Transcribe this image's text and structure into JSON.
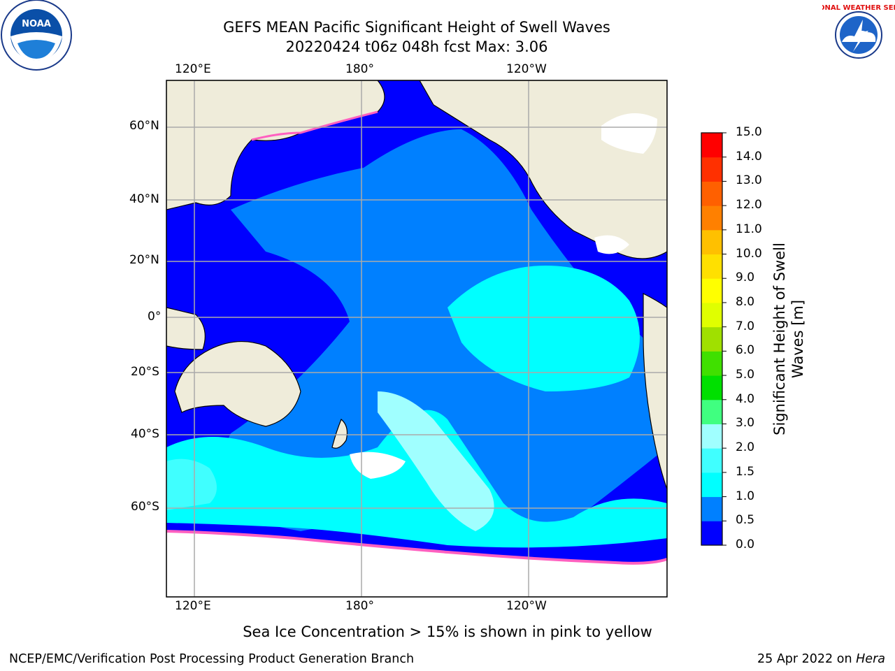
{
  "title": {
    "line1": "GEFS MEAN Pacific Significant Height of Swell Waves",
    "line2": "20220424 t06z 048h fcst   Max: 3.06"
  },
  "logos": {
    "left": {
      "name": "noaa-logo",
      "text": "NOAA"
    },
    "right": {
      "name": "nws-logo",
      "text": "NATIONAL WEATHER SERVICE"
    }
  },
  "map": {
    "lon_labels": [
      "120°E",
      "180°",
      "120°W"
    ],
    "lat_labels": [
      "60°N",
      "40°N",
      "20°N",
      "0°",
      "20°S",
      "40°S",
      "60°S"
    ]
  },
  "colorbar": {
    "title_line1": "Significant Height of Swell",
    "title_line2": "Waves [m]",
    "ticks": [
      "0.0",
      "0.5",
      "1.0",
      "1.5",
      "2.0",
      "3.0",
      "4.0",
      "5.0",
      "6.0",
      "7.0",
      "8.0",
      "9.0",
      "10.0",
      "11.0",
      "12.0",
      "13.0",
      "14.0",
      "15.0"
    ],
    "colors": [
      "#0000ff",
      "#0080ff",
      "#00ffff",
      "#40ffff",
      "#a0ffff",
      "#40ff80",
      "#00e000",
      "#40e000",
      "#a0e000",
      "#e0ff00",
      "#ffff00",
      "#ffe000",
      "#ffc000",
      "#ff8000",
      "#ff6000",
      "#ff3000",
      "#ff0000"
    ]
  },
  "ice_note": "Sea Ice Concentration > 15% is shown in pink to yellow",
  "footer": {
    "left": "NCEP/EMC/Verification Post Processing Product Generation Branch",
    "date": "25 Apr 2022 on",
    "machine": "Hera"
  }
}
